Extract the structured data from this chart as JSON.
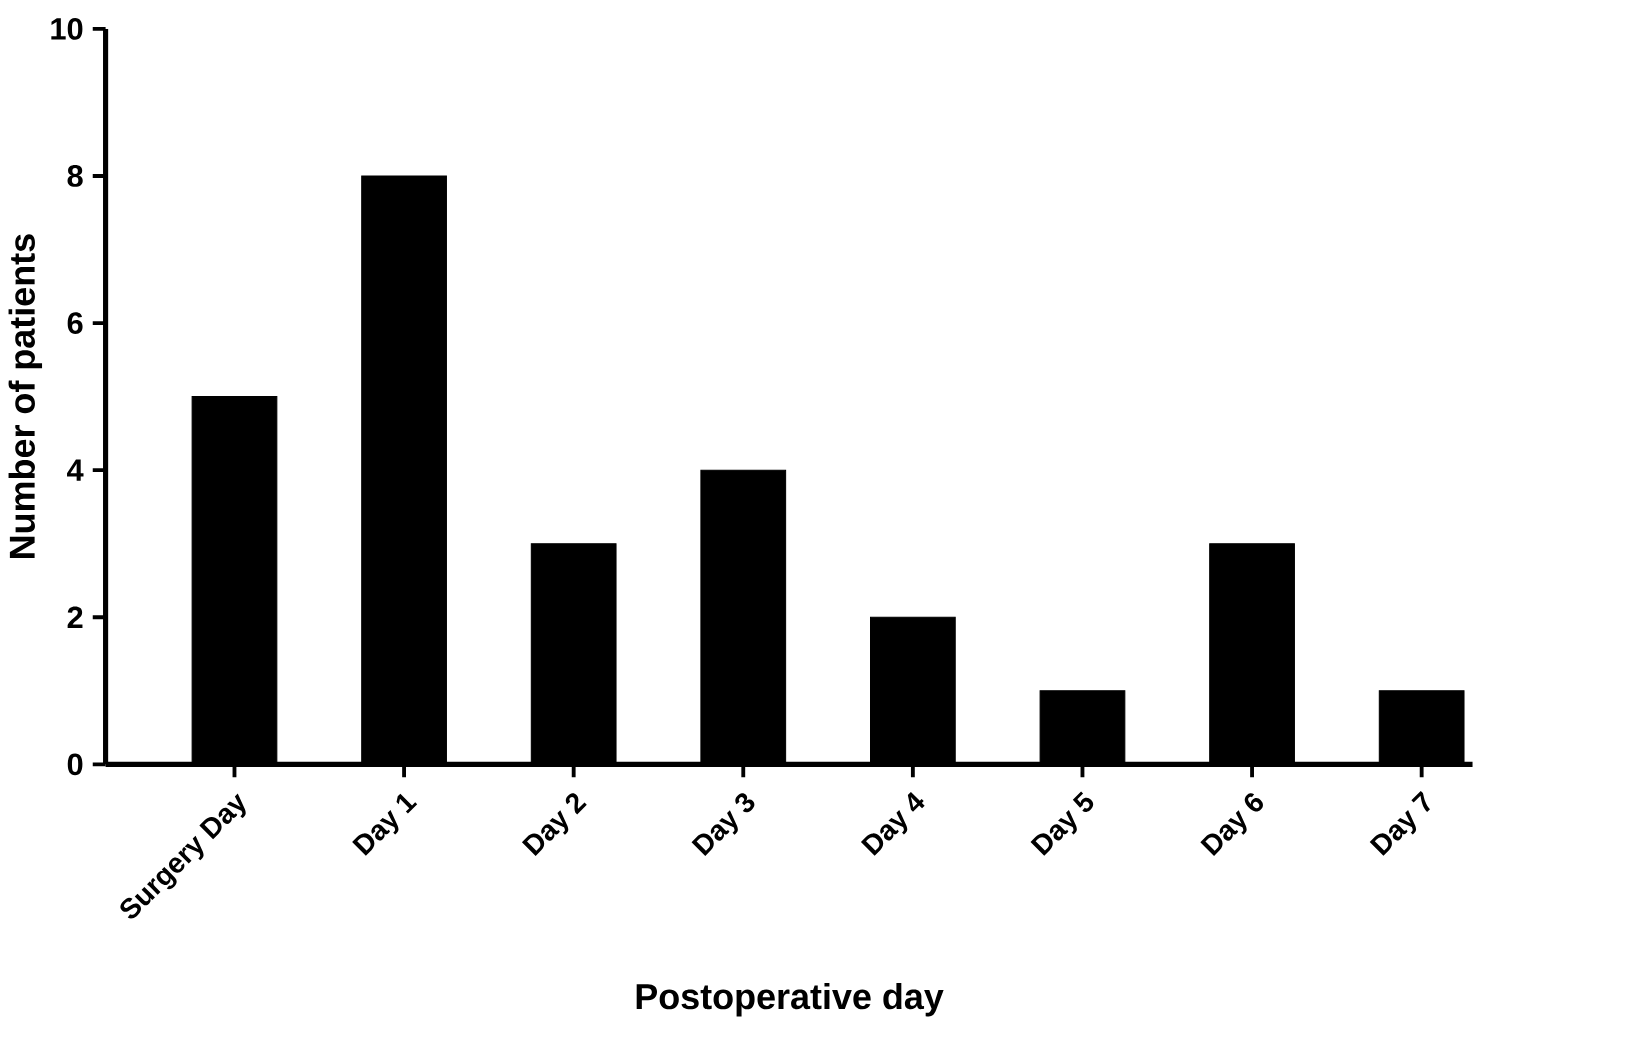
{
  "chart_data": {
    "type": "bar",
    "xlabel": "Postoperative day",
    "ylabel": "Number of patients",
    "categories": [
      "Surgery Day",
      "Day 1",
      "Day 2",
      "Day 3",
      "Day 4",
      "Day 5",
      "Day 6",
      "Day 7"
    ],
    "values": [
      5,
      8,
      3,
      4,
      2,
      1,
      3,
      1
    ],
    "color": "#000000",
    "ylim": [
      0,
      10
    ],
    "yticks": [
      0,
      2,
      4,
      6,
      8,
      10
    ]
  }
}
